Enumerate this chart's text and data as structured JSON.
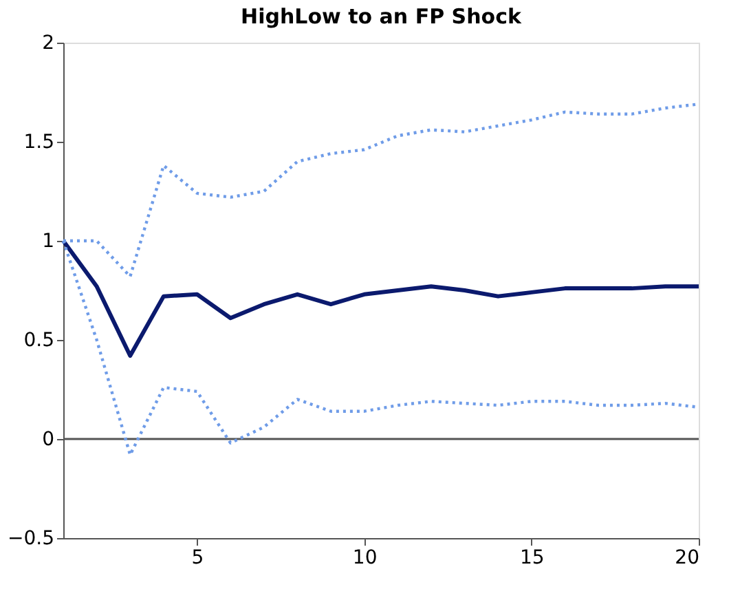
{
  "chart_data": {
    "type": "line",
    "title": "HighLow to an FP Shock",
    "x": [
      1,
      2,
      3,
      4,
      5,
      6,
      7,
      8,
      9,
      10,
      11,
      12,
      13,
      14,
      15,
      16,
      17,
      18,
      19,
      20
    ],
    "series": [
      {
        "color": "#0b1a6e",
        "line_style": "solid",
        "values": [
          1.0,
          0.77,
          0.42,
          0.72,
          0.73,
          0.61,
          0.68,
          0.73,
          0.68,
          0.73,
          0.75,
          0.77,
          0.75,
          0.72,
          0.74,
          0.76,
          0.76,
          0.76,
          0.77,
          0.77
        ]
      },
      {
        "color": "#6f9ce8",
        "line_style": "dotted",
        "values": [
          1.0,
          1.0,
          0.82,
          1.38,
          1.24,
          1.22,
          1.25,
          1.4,
          1.44,
          1.46,
          1.53,
          1.56,
          1.55,
          1.58,
          1.61,
          1.65,
          1.64,
          1.64,
          1.67,
          1.69
        ]
      },
      {
        "color": "#6f9ce8",
        "line_style": "dotted",
        "values": [
          1.0,
          0.5,
          -0.08,
          0.26,
          0.24,
          -0.02,
          0.06,
          0.2,
          0.14,
          0.14,
          0.17,
          0.19,
          0.18,
          0.17,
          0.19,
          0.19,
          0.17,
          0.17,
          0.18,
          0.16
        ]
      }
    ],
    "xlim": [
      1,
      20
    ],
    "xticks": [
      5,
      10,
      15,
      20
    ],
    "ylim": [
      -0.5,
      2
    ],
    "yticks": [
      -0.5,
      0,
      0.5,
      1,
      1.5,
      2
    ],
    "ref_lines": [
      {
        "axis": "y",
        "value": 0,
        "color": "#555555",
        "line_style": "solid"
      }
    ],
    "grid": false,
    "marker": "none"
  }
}
